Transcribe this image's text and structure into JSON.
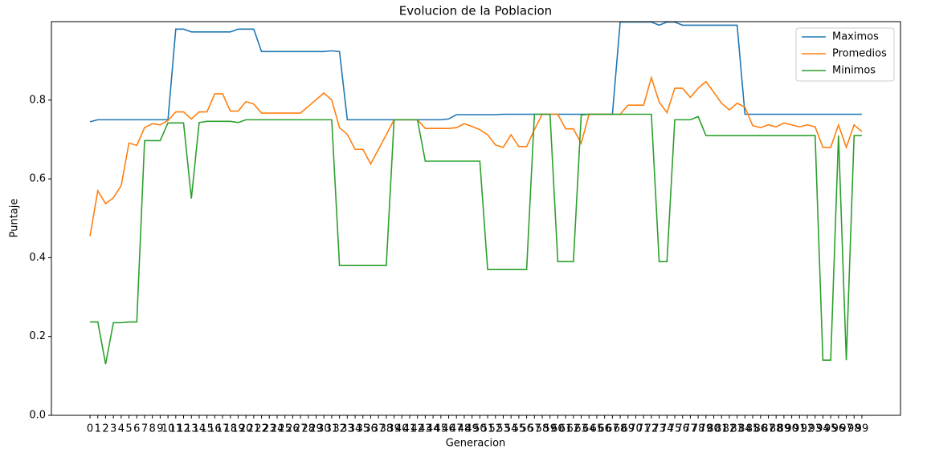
{
  "chart_data": {
    "type": "line",
    "title": "Evolucion de la Poblacion",
    "xlabel": "Generacion",
    "ylabel": "Puntaje",
    "x": [
      0,
      1,
      2,
      3,
      4,
      5,
      6,
      7,
      8,
      9,
      10,
      11,
      12,
      13,
      14,
      15,
      16,
      17,
      18,
      19,
      20,
      21,
      22,
      23,
      24,
      25,
      26,
      27,
      28,
      29,
      30,
      31,
      32,
      33,
      34,
      35,
      36,
      37,
      38,
      39,
      40,
      41,
      42,
      43,
      44,
      45,
      46,
      47,
      48,
      49,
      50,
      51,
      52,
      53,
      54,
      55,
      56,
      57,
      58,
      59,
      60,
      61,
      62,
      63,
      64,
      65,
      66,
      67,
      68,
      69,
      70,
      71,
      72,
      73,
      74,
      75,
      76,
      77,
      78,
      79,
      80,
      81,
      82,
      83,
      84,
      85,
      86,
      87,
      88,
      89,
      90,
      91,
      92,
      93,
      94,
      95,
      96,
      97,
      98,
      99
    ],
    "xticks": [
      0,
      1,
      2,
      3,
      4,
      5,
      6,
      7,
      8,
      9,
      10,
      11,
      12,
      13,
      14,
      15,
      16,
      17,
      18,
      19,
      20,
      21,
      22,
      23,
      24,
      25,
      26,
      27,
      28,
      29,
      30,
      31,
      32,
      33,
      34,
      35,
      36,
      37,
      38,
      39,
      40,
      41,
      42,
      43,
      44,
      45,
      46,
      47,
      48,
      49,
      50,
      51,
      52,
      53,
      54,
      55,
      56,
      57,
      58,
      59,
      60,
      61,
      62,
      63,
      64,
      65,
      66,
      67,
      68,
      69,
      70,
      71,
      72,
      73,
      74,
      75,
      76,
      77,
      78,
      79,
      80,
      81,
      82,
      83,
      84,
      85,
      86,
      87,
      88,
      89,
      90,
      91,
      92,
      93,
      94,
      95,
      96,
      97,
      98,
      99
    ],
    "xlim": [
      -4.95,
      103.95
    ],
    "ylim": [
      0,
      0.999
    ],
    "yticks": [
      {
        "value": 0,
        "label": "0.0"
      },
      0.2,
      0.4,
      0.6,
      0.8
    ],
    "legend": "upper right",
    "series": [
      {
        "name": "Maximos",
        "color": "#1f77b4",
        "values": [
          0.745,
          0.75,
          0.75,
          0.75,
          0.75,
          0.75,
          0.75,
          0.75,
          0.75,
          0.75,
          0.75,
          0.98,
          0.98,
          0.973,
          0.973,
          0.973,
          0.973,
          0.973,
          0.973,
          0.98,
          0.98,
          0.98,
          0.923,
          0.923,
          0.923,
          0.923,
          0.923,
          0.923,
          0.923,
          0.923,
          0.923,
          0.925,
          0.923,
          0.75,
          0.75,
          0.75,
          0.75,
          0.75,
          0.75,
          0.75,
          0.75,
          0.75,
          0.75,
          0.75,
          0.75,
          0.75,
          0.752,
          0.763,
          0.763,
          0.763,
          0.763,
          0.763,
          0.763,
          0.764,
          0.764,
          0.764,
          0.764,
          0.764,
          0.764,
          0.764,
          0.764,
          0.764,
          0.764,
          0.764,
          0.764,
          0.764,
          0.764,
          0.764,
          0.998,
          0.998,
          0.998,
          0.998,
          0.998,
          0.99,
          0.998,
          0.998,
          0.99,
          0.99,
          0.99,
          0.99,
          0.99,
          0.99,
          0.99,
          0.99,
          0.764,
          0.764,
          0.764,
          0.764,
          0.764,
          0.764,
          0.764,
          0.764,
          0.764,
          0.764,
          0.764,
          0.764,
          0.764,
          0.764,
          0.764,
          0.764
        ]
      },
      {
        "name": "Promedios",
        "color": "#ff7f0e",
        "values": [
          0.455,
          0.57,
          0.537,
          0.552,
          0.583,
          0.691,
          0.685,
          0.73,
          0.74,
          0.737,
          0.748,
          0.77,
          0.77,
          0.752,
          0.77,
          0.77,
          0.816,
          0.816,
          0.772,
          0.772,
          0.796,
          0.79,
          0.767,
          0.767,
          0.767,
          0.767,
          0.767,
          0.767,
          0.784,
          0.801,
          0.818,
          0.8,
          0.73,
          0.713,
          0.675,
          0.675,
          0.638,
          0.675,
          0.712,
          0.75,
          0.75,
          0.75,
          0.75,
          0.728,
          0.728,
          0.728,
          0.728,
          0.73,
          0.74,
          0.733,
          0.725,
          0.712,
          0.686,
          0.68,
          0.712,
          0.682,
          0.682,
          0.725,
          0.764,
          0.764,
          0.764,
          0.727,
          0.727,
          0.69,
          0.764,
          0.764,
          0.764,
          0.764,
          0.764,
          0.787,
          0.787,
          0.787,
          0.857,
          0.795,
          0.768,
          0.83,
          0.83,
          0.807,
          0.83,
          0.847,
          0.82,
          0.792,
          0.775,
          0.792,
          0.782,
          0.735,
          0.73,
          0.737,
          0.732,
          0.742,
          0.737,
          0.732,
          0.737,
          0.732,
          0.68,
          0.68,
          0.737,
          0.68,
          0.737,
          0.72
        ]
      },
      {
        "name": "Minimos",
        "color": "#2ca02c",
        "values": [
          0.237,
          0.237,
          0.13,
          0.235,
          0.235,
          0.237,
          0.237,
          0.697,
          0.697,
          0.697,
          0.742,
          0.742,
          0.742,
          0.55,
          0.743,
          0.746,
          0.746,
          0.746,
          0.746,
          0.743,
          0.75,
          0.75,
          0.75,
          0.75,
          0.75,
          0.75,
          0.75,
          0.75,
          0.75,
          0.75,
          0.75,
          0.75,
          0.38,
          0.38,
          0.38,
          0.38,
          0.38,
          0.38,
          0.38,
          0.75,
          0.75,
          0.75,
          0.75,
          0.645,
          0.645,
          0.645,
          0.645,
          0.645,
          0.645,
          0.645,
          0.645,
          0.37,
          0.37,
          0.37,
          0.37,
          0.37,
          0.37,
          0.764,
          0.764,
          0.764,
          0.39,
          0.39,
          0.39,
          0.762,
          0.764,
          0.764,
          0.764,
          0.764,
          0.764,
          0.764,
          0.764,
          0.764,
          0.764,
          0.39,
          0.39,
          0.75,
          0.75,
          0.75,
          0.758,
          0.71,
          0.71,
          0.71,
          0.71,
          0.71,
          0.71,
          0.71,
          0.71,
          0.71,
          0.71,
          0.71,
          0.71,
          0.71,
          0.71,
          0.71,
          0.14,
          0.14,
          0.71,
          0.14,
          0.71,
          0.71
        ]
      }
    ]
  }
}
